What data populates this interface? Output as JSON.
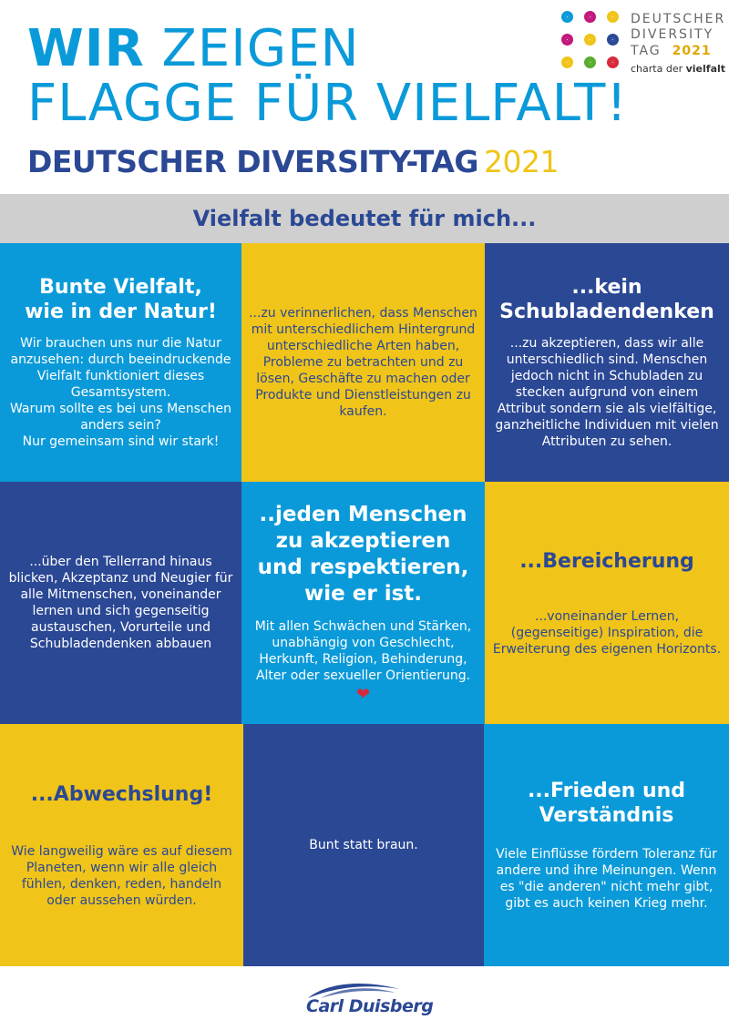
{
  "header": {
    "line1_bold": "WIR",
    "line1_rest": " ZEIGEN",
    "line2": "FLAGGE FÜR VIELFALT!",
    "subtitle": "DEUTSCHER DIVERSITY-TAG",
    "subtitle_year": "2021"
  },
  "logo": {
    "line1": "DEUTSCHER",
    "line2": "DIVERSITY",
    "line3": "TAG",
    "year": "2021",
    "charta_prefix": "charta der ",
    "charta_bold": "vielfalt",
    "dot_colors": [
      "#0b9ad9",
      "#c2187b",
      "#f0c419",
      "#c2187b",
      "#f0c419",
      "#2b4895",
      "#f0c419",
      "#5aab2e",
      "#d62a3a"
    ]
  },
  "band": {
    "text": "Vielfalt bedeutet für mich..."
  },
  "cells": {
    "c1": {
      "title": "Bunte Vielfalt,\nwie in der Natur!",
      "body": "Wir brauchen uns nur die Natur anzusehen: durch beeindruckende Vielfalt funktioniert dieses Gesamtsystem.\nWarum sollte es bei uns Menschen anders sein?\nNur gemeinsam sind wir stark!"
    },
    "c2": {
      "body": "...zu verinnerlichen, dass Menschen mit unterschiedlichem Hintergrund unterschiedliche Arten haben, Probleme zu betrachten und zu lösen, Geschäfte zu machen oder Produkte und Dienstleistungen zu kaufen."
    },
    "c3": {
      "title": "...kein\nSchubladendenken",
      "body": "...zu akzeptieren, dass wir alle unterschiedlich sind. Menschen jedoch nicht in Schubladen zu stecken aufgrund von einem Attribut sondern sie als vielfältige, ganzheitliche Individuen mit vielen Attributen zu sehen."
    },
    "c4": {
      "body": "...über den Tellerrand hinaus blicken, Akzeptanz und Neugier für alle Mitmenschen, voneinander lernen und sich gegenseitig austauschen, Vorurteile und Schubladendenken abbauen"
    },
    "c5": {
      "title": "..jeden Menschen\nzu akzeptieren\nund respektieren,\nwie er ist.",
      "body": "Mit allen Schwächen und Stärken, unabhängig von Geschlecht, Herkunft, Religion, Behinderung, Alter oder sexueller Orientierung.",
      "heart": "❤"
    },
    "c6": {
      "title": "...Bereicherung",
      "body": "...voneinander Lernen, (gegenseitige) Inspiration, die Erweiterung des eigenen Horizonts."
    },
    "c7": {
      "title": "...Abwechslung!",
      "body": "Wie langweilig wäre es auf diesem Planeten, wenn wir alle gleich fühlen, denken, reden, handeln oder aussehen würden."
    },
    "c8": {
      "body": "Bunt statt braun."
    },
    "c9": {
      "title": "...Frieden und\nVerständnis",
      "body": "Viele Einflüsse fördern Toleranz für andere und ihre Meinungen. Wenn es \"die anderen\" nicht mehr gibt, gibt es auch keinen Krieg mehr."
    }
  },
  "footer": {
    "brand": "Carl Duisberg"
  },
  "colors": {
    "cyan": "#0b9ad9",
    "navy": "#2b4895",
    "yellow": "#f0c419",
    "band": "#cfcfcf"
  }
}
